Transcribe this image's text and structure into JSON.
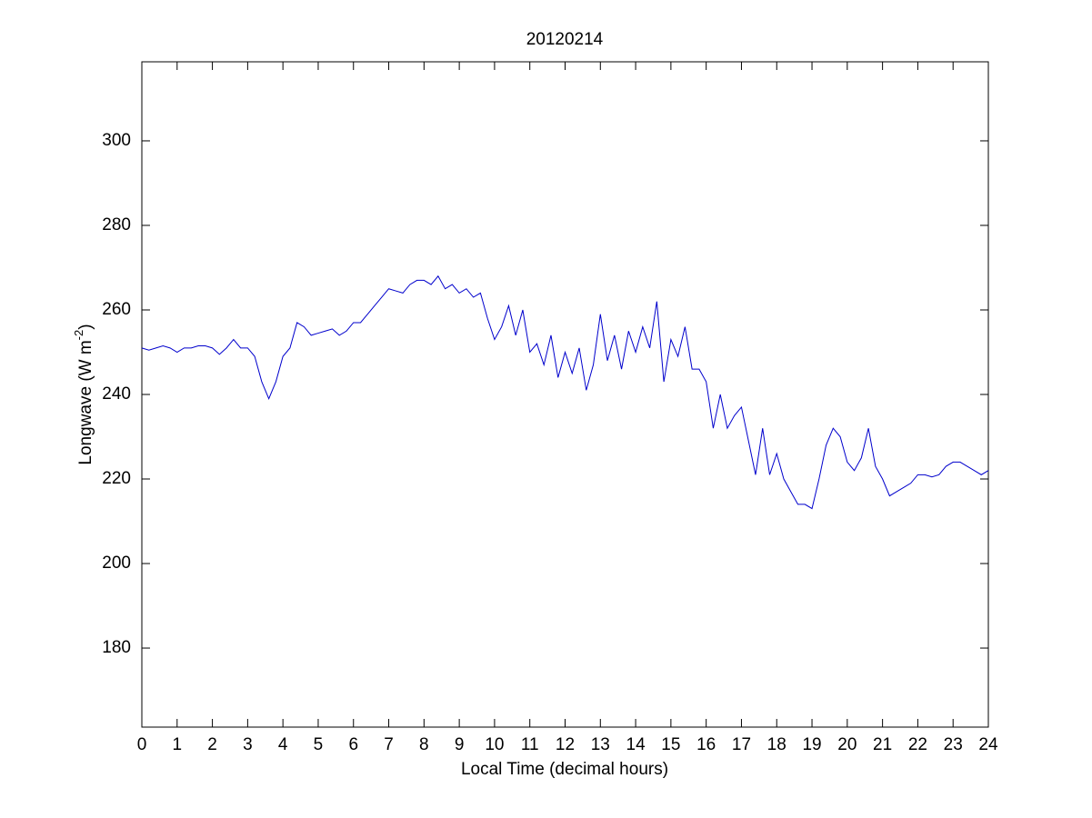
{
  "chart_data": {
    "type": "line",
    "title": "20120214",
    "xlabel": "Local Time (decimal hours)",
    "ylabel": [
      "Longwave (W m",
      "-2",
      ")"
    ],
    "x": [
      0,
      0.2,
      0.4,
      0.6,
      0.8,
      1,
      1.2,
      1.4,
      1.6,
      1.8,
      2,
      2.2,
      2.4,
      2.6,
      2.8,
      3,
      3.2,
      3.4,
      3.6,
      3.8,
      4,
      4.2,
      4.4,
      4.6,
      4.8,
      5,
      5.2,
      5.4,
      5.6,
      5.8,
      6,
      6.2,
      6.4,
      6.6,
      6.8,
      7,
      7.2,
      7.4,
      7.6,
      7.8,
      8,
      8.2,
      8.4,
      8.6,
      8.8,
      9,
      9.2,
      9.4,
      9.6,
      9.8,
      10,
      10.2,
      10.4,
      10.6,
      10.8,
      11,
      11.2,
      11.4,
      11.6,
      11.8,
      12,
      12.2,
      12.4,
      12.6,
      12.8,
      13,
      13.2,
      13.4,
      13.6,
      13.8,
      14,
      14.2,
      14.4,
      14.6,
      14.8,
      15,
      15.2,
      15.4,
      15.6,
      15.8,
      16,
      16.2,
      16.4,
      16.6,
      16.8,
      17,
      17.2,
      17.4,
      17.6,
      17.8,
      18,
      18.2,
      18.4,
      18.6,
      18.8,
      19,
      19.2,
      19.4,
      19.6,
      19.8,
      20,
      20.2,
      20.4,
      20.6,
      20.8,
      21,
      21.2,
      21.4,
      21.6,
      21.8,
      22,
      22.2,
      22.4,
      22.6,
      22.8,
      23,
      23.2,
      23.4,
      23.6,
      23.8,
      24
    ],
    "series": [
      {
        "color": "#0000cc",
        "values": [
          251,
          250.5,
          251,
          251.5,
          251,
          250,
          251,
          251,
          251.5,
          251.5,
          251,
          249.5,
          251,
          253,
          251,
          251,
          249,
          243,
          239,
          243,
          249,
          251,
          257,
          256,
          254,
          254.5,
          255,
          255.5,
          254,
          255,
          257,
          257,
          259,
          261,
          263,
          265,
          264.5,
          264,
          266,
          267,
          267,
          266,
          268,
          265,
          266,
          264,
          265,
          263,
          264,
          258,
          253,
          256,
          261,
          254,
          260,
          250,
          252,
          247,
          254,
          244,
          250,
          245,
          251,
          241,
          247,
          259,
          248,
          254,
          246,
          255,
          250,
          256,
          251,
          262,
          243,
          253,
          249,
          256,
          246,
          246,
          243,
          232,
          240,
          232,
          235,
          237,
          229,
          221,
          232,
          221,
          226,
          220,
          217,
          214,
          214,
          213,
          220,
          228,
          232,
          230,
          224,
          222,
          225,
          232,
          223,
          220,
          216,
          217,
          218,
          219,
          221,
          221,
          220.5,
          221,
          223,
          224,
          224,
          223,
          222,
          221,
          222
        ]
      }
    ],
    "xlim": [
      0,
      24
    ],
    "ylim": [
      161.3,
      318.7
    ],
    "xticks": [
      0,
      1,
      2,
      3,
      4,
      5,
      6,
      7,
      8,
      9,
      10,
      11,
      12,
      13,
      14,
      15,
      16,
      17,
      18,
      19,
      20,
      21,
      22,
      23,
      24
    ],
    "yticks": [
      180,
      200,
      220,
      240,
      260,
      280,
      300
    ]
  }
}
